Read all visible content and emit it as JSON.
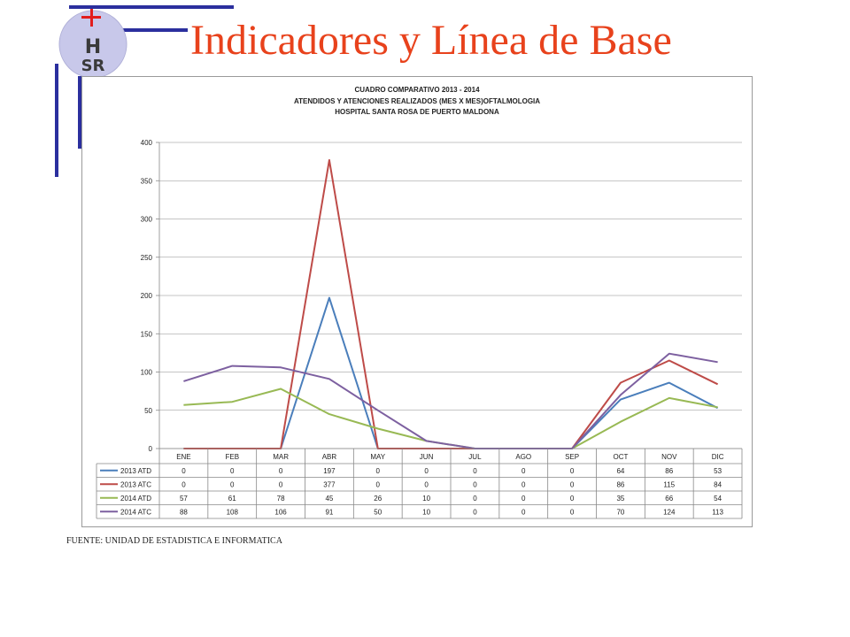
{
  "slide": {
    "title": "Indicadores y Línea de Base",
    "source_note": "FUENTE: UNIDAD DE ESTADISTICA E INFORMATICA",
    "logo_text": "HSR",
    "accent_color": "#e8421c",
    "deco_color": "#2b2f9e"
  },
  "chart_data": {
    "type": "line",
    "title": "CUADRO COMPARATIVO 2013 - 2014",
    "subtitle": [
      "ATENDIDOS Y ATENCIONES  REALIZADOS (MES X MES)OFTALMOLOGIA",
      "HOSPITAL SANTA ROSA DE PUERTO MALDONA"
    ],
    "categories": [
      "ENE",
      "FEB",
      "MAR",
      "ABR",
      "MAY",
      "JUN",
      "JUL",
      "AGO",
      "SEP",
      "OCT",
      "NOV",
      "DIC"
    ],
    "ylim": [
      0,
      400
    ],
    "yticks": [
      0,
      50,
      100,
      150,
      200,
      250,
      300,
      350,
      400
    ],
    "grid": true,
    "legend": "data-table",
    "series": [
      {
        "name": "2013 ATD",
        "color": "#4a7ebb",
        "values": [
          0,
          0,
          0,
          197,
          0,
          0,
          0,
          0,
          0,
          64,
          86,
          53
        ]
      },
      {
        "name": "2013 ATC",
        "color": "#be4b48",
        "values": [
          0,
          0,
          0,
          377,
          0,
          0,
          0,
          0,
          0,
          86,
          115,
          84
        ]
      },
      {
        "name": "2014 ATD",
        "color": "#98b954",
        "values": [
          57,
          61,
          78,
          45,
          26,
          10,
          0,
          0,
          0,
          35,
          66,
          54
        ]
      },
      {
        "name": "2014 ATC",
        "color": "#7d60a0",
        "values": [
          88,
          108,
          106,
          91,
          50,
          10,
          0,
          0,
          0,
          70,
          124,
          113
        ]
      }
    ]
  }
}
